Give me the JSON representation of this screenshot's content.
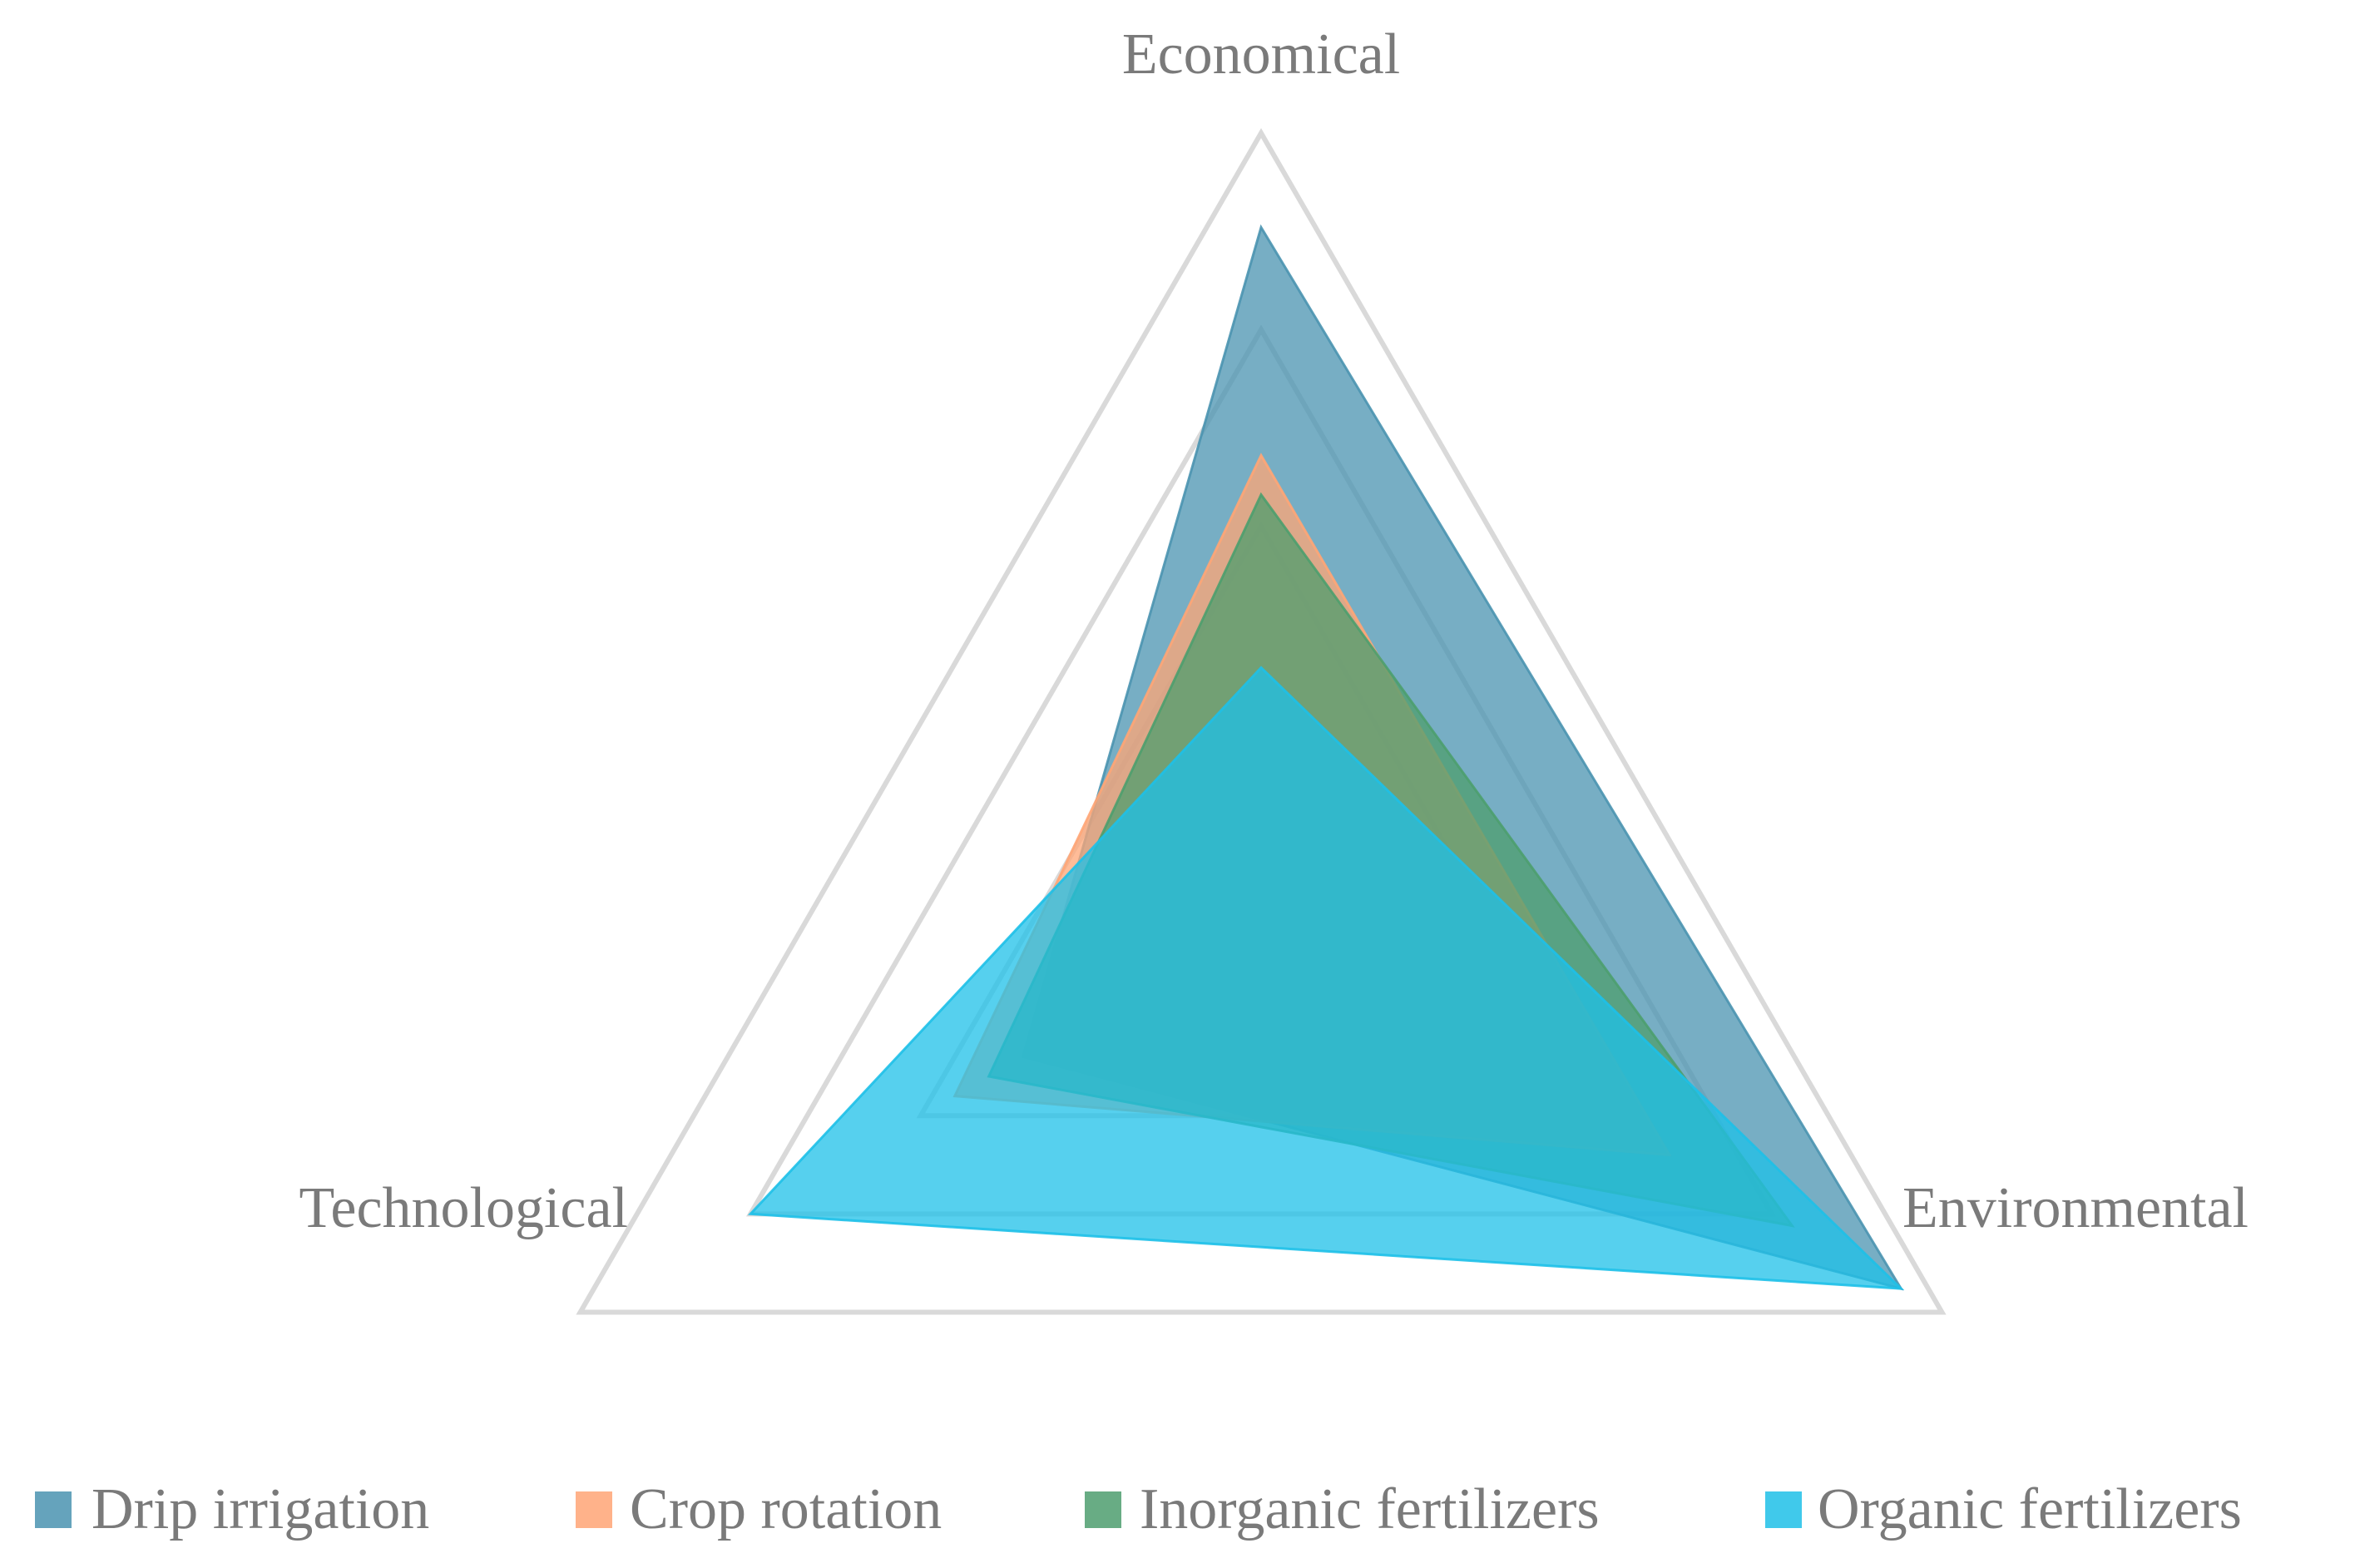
{
  "chart_data": {
    "type": "radar",
    "axes": [
      "Economical",
      "Environmental",
      "Technological"
    ],
    "scale": {
      "min": 0,
      "max": 1,
      "rings": [
        0.25,
        0.5,
        0.75,
        1.0
      ]
    },
    "grid": true,
    "legend_position": "bottom",
    "series": [
      {
        "name": "Drip irrigation",
        "color": "#4a93b0",
        "opacity": 0.75,
        "values": [
          0.88,
          0.94,
          0.35
        ]
      },
      {
        "name": "Crop rotation",
        "color": "#ffa576",
        "opacity": 0.75,
        "values": [
          0.59,
          0.6,
          0.45
        ]
      },
      {
        "name": "Inorganic fertilizers",
        "color": "#4d9e6e",
        "opacity": 0.75,
        "values": [
          0.54,
          0.78,
          0.4
        ]
      },
      {
        "name": "Organic fertilizers",
        "color": "#1ec0e8",
        "opacity": 0.75,
        "values": [
          0.32,
          0.94,
          0.75
        ]
      }
    ]
  }
}
